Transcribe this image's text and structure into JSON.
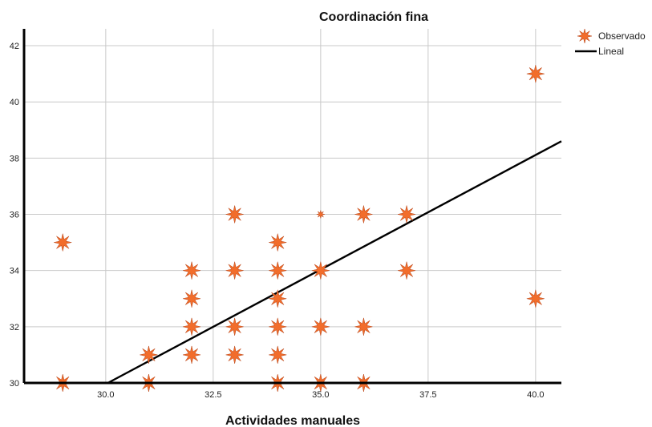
{
  "chart_data": {
    "type": "scatter",
    "title": "Coordinación fina",
    "xlabel": "Actividades manuales",
    "ylabel": "",
    "xlim": [
      28.1,
      40.6
    ],
    "ylim": [
      30,
      42.6
    ],
    "xticks": [
      {
        "value": 30.0,
        "label": "30.0"
      },
      {
        "value": 32.5,
        "label": "32.5"
      },
      {
        "value": 35.0,
        "label": "35.0"
      },
      {
        "value": 37.5,
        "label": "37.5"
      },
      {
        "value": 40.0,
        "label": "40.0"
      }
    ],
    "yticks": [
      {
        "value": 30,
        "label": "30"
      },
      {
        "value": 32,
        "label": "32"
      },
      {
        "value": 34,
        "label": "34"
      },
      {
        "value": 36,
        "label": "36"
      },
      {
        "value": 38,
        "label": "38"
      },
      {
        "value": 40,
        "label": "40"
      },
      {
        "value": 42,
        "label": "42"
      }
    ],
    "grid": true,
    "legend_position": "top-right",
    "series": [
      {
        "name": "Observado",
        "kind": "scatter",
        "color": "#f26d2b",
        "marker": "star",
        "points": [
          {
            "x": 29,
            "y": 35
          },
          {
            "x": 29,
            "y": 30
          },
          {
            "x": 31,
            "y": 31
          },
          {
            "x": 31,
            "y": 30
          },
          {
            "x": 32,
            "y": 34
          },
          {
            "x": 32,
            "y": 33
          },
          {
            "x": 32,
            "y": 32
          },
          {
            "x": 32,
            "y": 31
          },
          {
            "x": 33,
            "y": 36
          },
          {
            "x": 33,
            "y": 34
          },
          {
            "x": 33,
            "y": 32
          },
          {
            "x": 33,
            "y": 31
          },
          {
            "x": 34,
            "y": 35
          },
          {
            "x": 34,
            "y": 34
          },
          {
            "x": 34,
            "y": 33
          },
          {
            "x": 34,
            "y": 32
          },
          {
            "x": 34,
            "y": 31
          },
          {
            "x": 34,
            "y": 30
          },
          {
            "x": 35,
            "y": 36,
            "small": true
          },
          {
            "x": 35,
            "y": 34
          },
          {
            "x": 35,
            "y": 32
          },
          {
            "x": 35,
            "y": 30
          },
          {
            "x": 36,
            "y": 36
          },
          {
            "x": 36,
            "y": 32
          },
          {
            "x": 36,
            "y": 30
          },
          {
            "x": 37,
            "y": 36
          },
          {
            "x": 37,
            "y": 34
          },
          {
            "x": 40,
            "y": 41
          },
          {
            "x": 40,
            "y": 33
          }
        ]
      },
      {
        "name": "Lineal",
        "kind": "line",
        "color": "#000000",
        "points": [
          {
            "x": 30.05,
            "y": 30
          },
          {
            "x": 40.6,
            "y": 38.6
          }
        ]
      }
    ]
  }
}
